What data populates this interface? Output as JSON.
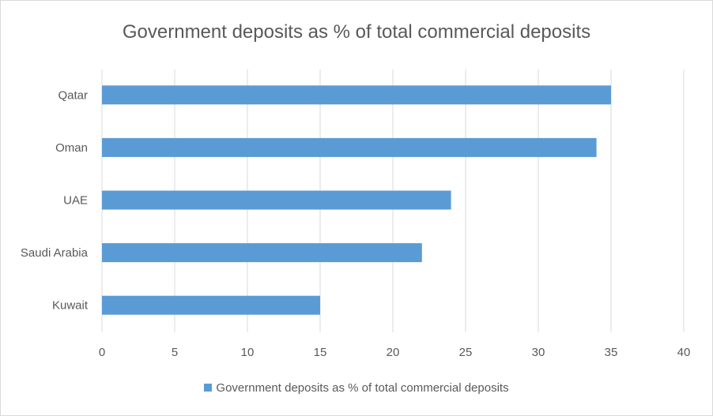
{
  "chart_data": {
    "type": "bar",
    "orientation": "horizontal",
    "title": "Government deposits as % of total commercial deposits",
    "categories": [
      "Qatar",
      "Oman",
      "UAE",
      "Saudi Arabia",
      "Kuwait"
    ],
    "series": [
      {
        "name": "Government deposits as % of total commercial deposits",
        "values": [
          35,
          34,
          24,
          22,
          15
        ],
        "color": "#5b9bd5"
      }
    ],
    "xlim": [
      0,
      40
    ],
    "xticks": [
      0,
      5,
      10,
      15,
      20,
      25,
      30,
      35,
      40
    ],
    "grid": true,
    "grid_color": "#d9d9d9",
    "legend": "bottom"
  }
}
